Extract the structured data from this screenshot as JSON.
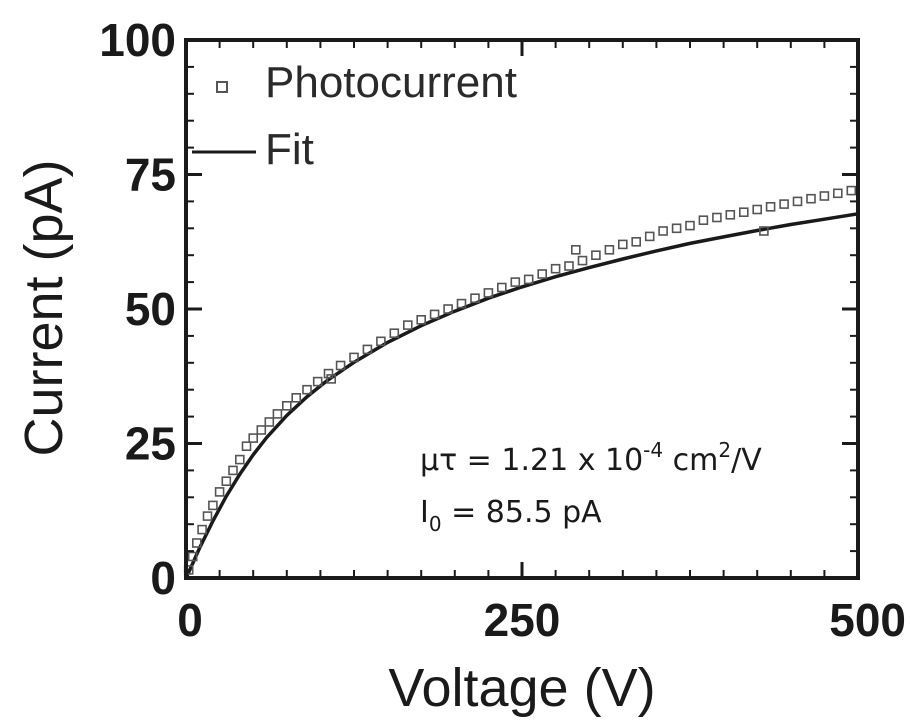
{
  "chart_data": {
    "type": "scatter",
    "xlabel": "Voltage (V)",
    "ylabel": "Current (pA)",
    "xlim": [
      0,
      500
    ],
    "ylim": [
      0,
      100
    ],
    "xticks": [
      0,
      250,
      500
    ],
    "yticks": [
      0,
      25,
      50,
      75,
      100
    ],
    "grid": false,
    "legend_position": "top-left",
    "colors": {
      "axis": "#1a1a1a",
      "marker": "#555555",
      "fit": "#1a1a1a"
    },
    "series": [
      {
        "name": "Photocurrent",
        "kind": "markers",
        "points": [
          [
            2,
            1.5
          ],
          [
            5,
            4
          ],
          [
            8,
            6.5
          ],
          [
            12,
            9
          ],
          [
            16,
            11.5
          ],
          [
            20,
            13.5
          ],
          [
            25,
            16
          ],
          [
            30,
            18
          ],
          [
            35,
            20
          ],
          [
            40,
            22
          ],
          [
            45,
            24.5
          ],
          [
            50,
            26
          ],
          [
            56,
            27.5
          ],
          [
            62,
            29
          ],
          [
            68,
            30.5
          ],
          [
            75,
            32
          ],
          [
            82,
            33.5
          ],
          [
            90,
            35
          ],
          [
            98,
            36.5
          ],
          [
            106,
            38
          ],
          [
            108,
            37
          ],
          [
            115,
            39.5
          ],
          [
            125,
            41
          ],
          [
            135,
            42.5
          ],
          [
            145,
            44
          ],
          [
            155,
            45.5
          ],
          [
            165,
            47
          ],
          [
            175,
            48
          ],
          [
            185,
            49
          ],
          [
            195,
            50
          ],
          [
            205,
            51
          ],
          [
            215,
            52
          ],
          [
            225,
            53
          ],
          [
            235,
            54
          ],
          [
            245,
            55
          ],
          [
            255,
            55.5
          ],
          [
            265,
            56.5
          ],
          [
            275,
            57.5
          ],
          [
            285,
            58
          ],
          [
            290,
            61
          ],
          [
            295,
            59
          ],
          [
            305,
            60
          ],
          [
            315,
            61
          ],
          [
            325,
            62
          ],
          [
            335,
            62.5
          ],
          [
            345,
            63.5
          ],
          [
            355,
            64.5
          ],
          [
            365,
            65
          ],
          [
            375,
            65.5
          ],
          [
            385,
            66.5
          ],
          [
            395,
            67
          ],
          [
            405,
            67.5
          ],
          [
            415,
            68
          ],
          [
            425,
            68.5
          ],
          [
            430,
            64.5
          ],
          [
            435,
            69
          ],
          [
            445,
            69.5
          ],
          [
            455,
            70
          ],
          [
            465,
            70.5
          ],
          [
            475,
            71
          ],
          [
            485,
            71.5
          ],
          [
            495,
            72
          ]
        ]
      },
      {
        "name": "Fit",
        "kind": "line",
        "model": "Hecht",
        "I0": 85.5,
        "points": [
          [
            0,
            0
          ],
          [
            5,
            2.7
          ],
          [
            10,
            5.5
          ],
          [
            20,
            10.6
          ],
          [
            30,
            15.2
          ],
          [
            40,
            19.3
          ],
          [
            50,
            22.9
          ],
          [
            60,
            26.1
          ],
          [
            75,
            30.2
          ],
          [
            90,
            33.7
          ],
          [
            105,
            36.7
          ],
          [
            125,
            40.1
          ],
          [
            150,
            43.8
          ],
          [
            175,
            46.9
          ],
          [
            200,
            49.6
          ],
          [
            225,
            52.0
          ],
          [
            250,
            54.1
          ],
          [
            275,
            56.0
          ],
          [
            300,
            57.7
          ],
          [
            325,
            59.3
          ],
          [
            350,
            60.8
          ],
          [
            375,
            62.2
          ],
          [
            400,
            63.4
          ],
          [
            425,
            64.6
          ],
          [
            450,
            65.7
          ],
          [
            475,
            66.7
          ],
          [
            500,
            67.7
          ]
        ]
      }
    ],
    "annotations": {
      "mu_tau": {
        "prefix": "μτ = 1.21 x 10",
        "exp": "-4",
        "mid": " cm",
        "exp2": "2",
        "suffix": "/V"
      },
      "i0": {
        "main": "I",
        "sub": "0",
        "rest": " = 85.5 pA"
      }
    }
  }
}
